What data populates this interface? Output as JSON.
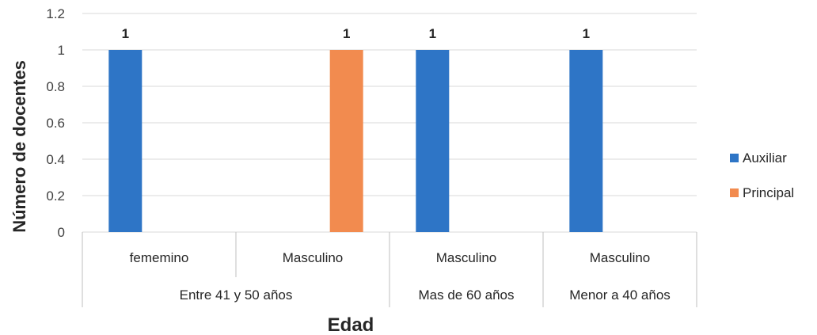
{
  "chart_data": {
    "type": "bar",
    "title": "",
    "xlabel": "Edad",
    "ylabel": "Número de docentes",
    "ylim": [
      0,
      1.2
    ],
    "yticks": [
      "0",
      "0.2",
      "0.4",
      "0.6",
      "0.8",
      "1",
      "1.2"
    ],
    "grid": true,
    "legend_position": "right",
    "groups": [
      {
        "name": "Entre 41 y 50 años",
        "categories": [
          "fememino",
          "Masculino"
        ]
      },
      {
        "name": "Mas de 60 años",
        "categories": [
          "Masculino"
        ]
      },
      {
        "name": "Menor a 40 años",
        "categories": [
          "Masculino"
        ]
      }
    ],
    "categories": [
      "fememino",
      "Masculino",
      "Masculino",
      "Masculino"
    ],
    "series": [
      {
        "name": "Auxiliar",
        "color": "#2e75c6",
        "values": [
          1,
          null,
          1,
          1
        ]
      },
      {
        "name": "Principal",
        "color": "#f28b4f",
        "values": [
          null,
          1,
          null,
          null
        ]
      }
    ],
    "data_labels": [
      "1",
      "1",
      "1",
      "1"
    ]
  }
}
